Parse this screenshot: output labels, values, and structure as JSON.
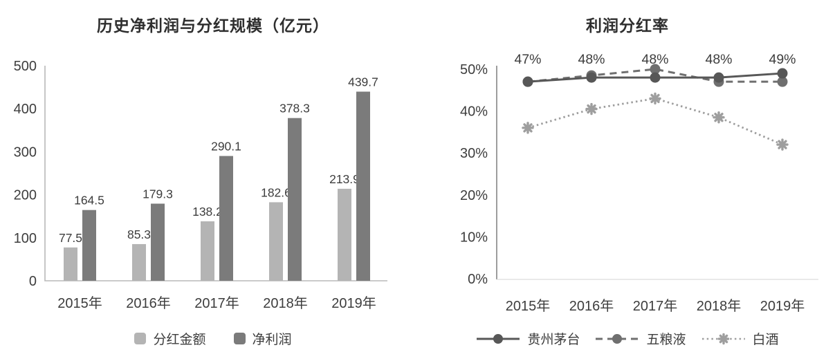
{
  "chart_data": [
    {
      "type": "bar",
      "title": "历史净利润与分红规模（亿元）",
      "categories": [
        "2015年",
        "2016年",
        "2017年",
        "2018年",
        "2019年"
      ],
      "series": [
        {
          "name": "分红金额",
          "values": [
            77.5,
            85.3,
            138.2,
            182.6,
            213.9
          ],
          "labels": [
            "77.5",
            "85.3",
            "138.2",
            "182.6",
            "213.9"
          ],
          "color": "#b4b4b4"
        },
        {
          "name": "净利润",
          "values": [
            164.5,
            179.3,
            290.1,
            378.3,
            439.7
          ],
          "labels": [
            "164.5",
            "179.3",
            "290.1",
            "378.3",
            "439.7"
          ],
          "color": "#7b7b7b"
        }
      ],
      "xlabel": "",
      "ylabel": "",
      "ylim": [
        0,
        500
      ],
      "yticks": [
        "0",
        "100",
        "200",
        "300",
        "400",
        "500"
      ],
      "ytick_values": [
        0,
        100,
        200,
        300,
        400,
        500
      ],
      "grid": false,
      "legend_position": "bottom",
      "data_labels": true,
      "axis_color": "#b8b8b8",
      "text_color": "#3d3d3d"
    },
    {
      "type": "line",
      "title": "利润分红率",
      "categories": [
        "2015年",
        "2016年",
        "2017年",
        "2018年",
        "2019年"
      ],
      "series": [
        {
          "name": "贵州茅台",
          "values": [
            47,
            48,
            48,
            48,
            49
          ],
          "style": "solid",
          "marker": "circle",
          "color": "#575757"
        },
        {
          "name": "五粮液",
          "values": [
            47,
            48.5,
            50,
            47,
            47
          ],
          "style": "dashed",
          "marker": "circle",
          "color": "#6f6f6f"
        },
        {
          "name": "白酒",
          "values": [
            36,
            40.5,
            43,
            38.5,
            32
          ],
          "style": "dotted",
          "marker": "star",
          "color": "#9e9e9e"
        }
      ],
      "point_labels": [
        "47%",
        "48%",
        "48%",
        "48%",
        "49%"
      ],
      "point_labels_series": "贵州茅台",
      "xlabel": "",
      "ylabel": "",
      "ylim": [
        0,
        50
      ],
      "yticks": [
        "0%",
        "10%",
        "20%",
        "30%",
        "40%",
        "50%"
      ],
      "ytick_values": [
        0,
        10,
        20,
        30,
        40,
        50
      ],
      "grid": false,
      "legend_position": "bottom",
      "axis_color": "#8c8c8c",
      "baseline_color": "#dcdcdc",
      "text_color": "#3d3d3d"
    }
  ]
}
